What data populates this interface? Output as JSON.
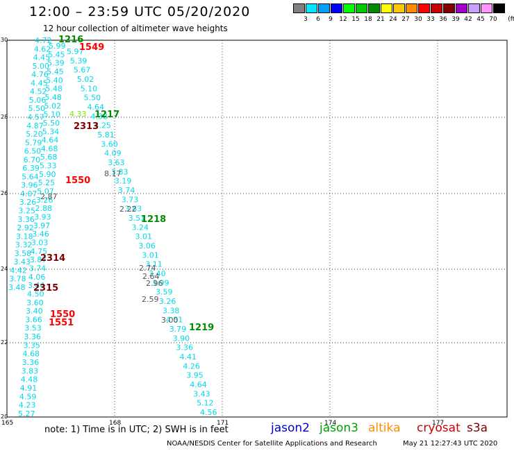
{
  "header": {
    "title": "12:00 – 23:59 UTC 05/20/2020",
    "subtitle": "12 hour collection of altimeter wave heights"
  },
  "legend": {
    "unit": "(ft)",
    "bins": [
      {
        "label": "3",
        "color": "#808080"
      },
      {
        "label": "6",
        "color": "#00e8ff"
      },
      {
        "label": "9",
        "color": "#00a0ff"
      },
      {
        "label": "12",
        "color": "#0000ff"
      },
      {
        "label": "15",
        "color": "#00ff00"
      },
      {
        "label": "18",
        "color": "#00c800"
      },
      {
        "label": "21",
        "color": "#008c00"
      },
      {
        "label": "24",
        "color": "#ffff00"
      },
      {
        "label": "27",
        "color": "#ffc800"
      },
      {
        "label": "30",
        "color": "#ff8c00"
      },
      {
        "label": "33",
        "color": "#ff0000"
      },
      {
        "label": "36",
        "color": "#c80000"
      },
      {
        "label": "39",
        "color": "#800000"
      },
      {
        "label": "42",
        "color": "#a000c8"
      },
      {
        "label": "45",
        "color": "#c8a0ff"
      },
      {
        "label": "70",
        "color": "#ff96ff"
      },
      {
        "label": "",
        "color": "#000000"
      }
    ]
  },
  "map": {
    "lon_ticks": [
      "165",
      "168",
      "171",
      "174",
      "177"
    ],
    "lat_ticks": [
      "30",
      "28",
      "26",
      "24",
      "22",
      "20"
    ]
  },
  "tracks": {
    "left_col_a": [
      "4.72",
      "4.62",
      "4.45",
      "5.00",
      "4.76",
      "4.45",
      "4.52",
      "5.06",
      "5.50",
      "4.57",
      "4.87",
      "5.20",
      "5.79",
      "6.50",
      "6.70",
      "6.39",
      "5.64",
      "3.96",
      "4.07",
      "3.26",
      "3.25",
      "3.36",
      "2.92",
      "3.18",
      "3.32",
      "3.58",
      "3.43",
      "4.42",
      "3.78",
      "3.48"
    ],
    "left_col_b": [
      "5.99",
      "5.45",
      "5.39",
      "5.45",
      "5.40",
      "5.48",
      "5.48",
      "5.02",
      "5.10",
      "5.50",
      "5.34",
      "4.64",
      "4.68",
      "5.68",
      "5.33",
      "5.90",
      "5.25",
      "5.07",
      "3.26",
      "2.88",
      "3.93",
      "3.97",
      "3.46",
      "3.03",
      "4.75",
      "3.87",
      "3.74",
      "4.06",
      "3.44",
      "4.50",
      "3.60",
      "3.40",
      "3.66",
      "3.53",
      "3.36",
      "3.35",
      "4.68",
      "3.36",
      "3.83",
      "4.48",
      "4.91",
      "4.59",
      "4.23",
      "5.27"
    ],
    "mid_col": [
      "5.97",
      "5.39",
      "5.67",
      "5.02",
      "5.10",
      "5.50",
      "4.64",
      "4.38",
      "4.25",
      "5.81",
      "3.60",
      "4.09",
      "3.63",
      "3.83",
      "3.19",
      "3.74",
      "3.73",
      "3.83",
      "3.51",
      "3.24",
      "3.01",
      "3.06",
      "3.01",
      "3.11",
      "3.40",
      "3.99",
      "3.59",
      "3.26",
      "3.38",
      "4.51",
      "3.79",
      "3.90",
      "3.36",
      "4.41",
      "4.26",
      "3.95",
      "4.64",
      "3.43",
      "5.12",
      "4.56"
    ],
    "gray_vals": [
      "2.87",
      "2.22",
      "2.74",
      "2.64",
      "2.96",
      "2.59",
      "3.00",
      "8.17"
    ],
    "green_val": "4.33",
    "time_labels": [
      {
        "text": "1216",
        "color": "#008c00"
      },
      {
        "text": "1549",
        "color": "#ff0000"
      },
      {
        "text": "1217",
        "color": "#008c00"
      },
      {
        "text": "2313",
        "color": "#800000"
      },
      {
        "text": "1550",
        "color": "#ff0000"
      },
      {
        "text": "1218",
        "color": "#008c00"
      },
      {
        "text": "2314",
        "color": "#800000"
      },
      {
        "text": "2315",
        "color": "#800000"
      },
      {
        "text": "1550",
        "color": "#ff0000"
      },
      {
        "text": "1551",
        "color": "#ff0000"
      },
      {
        "text": "1219",
        "color": "#008c00"
      }
    ]
  },
  "footer": {
    "note": "note:  1) Time is in UTC; 2) SWH is in feet",
    "satellites": [
      {
        "name": "jason2",
        "color": "#0000c8"
      },
      {
        "name": "jason3",
        "color": "#00a000"
      },
      {
        "name": "altika",
        "color": "#ff8c00"
      },
      {
        "name": "cryosat",
        "color": "#c80000"
      },
      {
        "name": "s3a",
        "color": "#800000"
      }
    ],
    "credit": "NOAA/NESDIS Center for Satellite Applications and Research",
    "timestamp": "May 21 12:27:43 UTC 2020"
  }
}
